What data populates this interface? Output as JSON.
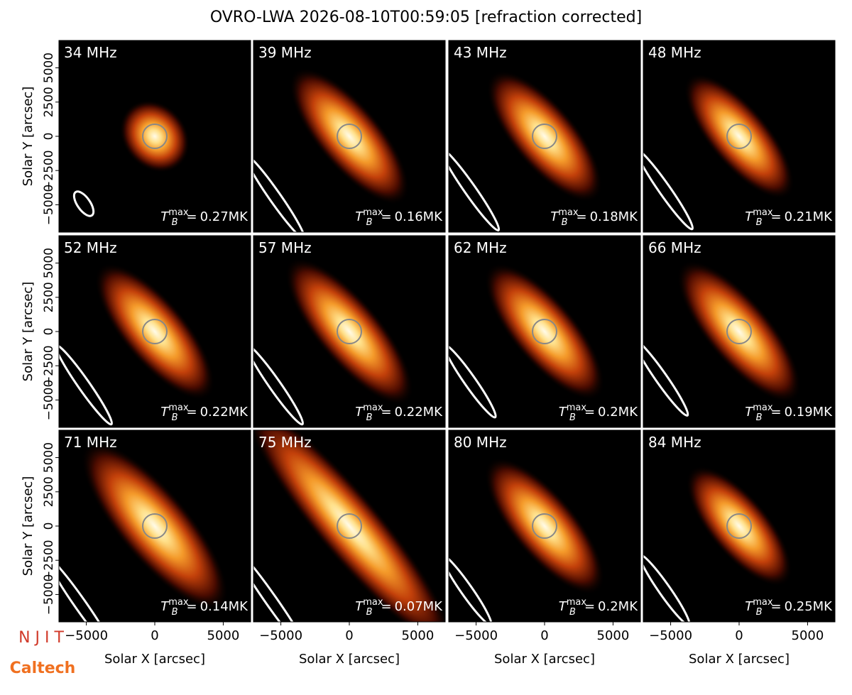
{
  "title": "OVRO-LWA 2026-08-10T00:59:05 [refraction corrected]",
  "xlabel": "Solar X [arcsec]",
  "ylabel": "Solar Y [arcsec]",
  "xlim": [
    -7000,
    7000
  ],
  "ylim": [
    -7000,
    7000
  ],
  "xticks": [
    {
      "value": -5000,
      "label": "−5000"
    },
    0,
    5000
  ],
  "yticks": [
    {
      "value": -5000,
      "label": "−5000"
    },
    {
      "value": -2500,
      "label": "−2500"
    },
    0,
    2500,
    5000
  ],
  "tb_symbol": "T",
  "tb_sub": "B",
  "tb_sup": "max",
  "tb_eq": "=",
  "panels": [
    {
      "label": "34 MHz",
      "tb": "0.27MK"
    },
    {
      "label": "39 MHz",
      "tb": "0.16MK"
    },
    {
      "label": "43 MHz",
      "tb": "0.18MK"
    },
    {
      "label": "48 MHz",
      "tb": "0.21MK"
    },
    {
      "label": "52 MHz",
      "tb": "0.22MK"
    },
    {
      "label": "57 MHz",
      "tb": "0.22MK"
    },
    {
      "label": "62 MHz",
      "tb": "0.2MK"
    },
    {
      "label": "66 MHz",
      "tb": "0.19MK"
    },
    {
      "label": "71 MHz",
      "tb": "0.14MK"
    },
    {
      "label": "75 MHz",
      "tb": "0.07MK"
    },
    {
      "label": "80 MHz",
      "tb": "0.2MK"
    },
    {
      "label": "84 MHz",
      "tb": "0.25MK"
    }
  ],
  "logos": [
    "N J I T",
    "Caltech"
  ]
}
